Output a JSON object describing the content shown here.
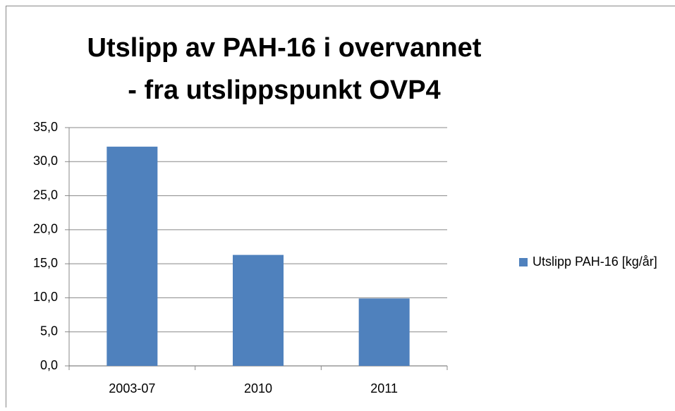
{
  "chart_data": {
    "type": "bar",
    "title": [
      "Utslipp av PAH-16 i overvannet",
      "- fra utslippspunkt OVP4"
    ],
    "categories": [
      "2003-07",
      "2010",
      "2011"
    ],
    "series": [
      {
        "name": "Utslipp PAH-16 [kg/år]",
        "color": "#4f81bd",
        "values": [
          32.2,
          16.3,
          9.9
        ]
      }
    ],
    "ylim": [
      0,
      35
    ],
    "yticks": [
      {
        "value": 0,
        "label": "0,0"
      },
      {
        "value": 5,
        "label": "5,0"
      },
      {
        "value": 10,
        "label": "10,0"
      },
      {
        "value": 15,
        "label": "15,0"
      },
      {
        "value": 20,
        "label": "20,0"
      },
      {
        "value": 25,
        "label": "25,0"
      },
      {
        "value": 30,
        "label": "30,0"
      },
      {
        "value": 35,
        "label": "35,0"
      }
    ],
    "grid": true,
    "legend": "right"
  }
}
